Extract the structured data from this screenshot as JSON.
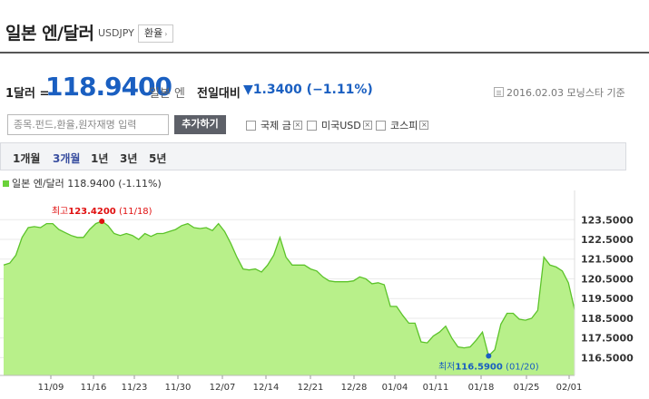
{
  "header": {
    "title": "일본 엔/달러",
    "ticker": "USDJPY",
    "exchange_button": "환율",
    "exchange_arrow": "›"
  },
  "quote": {
    "unit_lead": "1달러 =",
    "price": "118.9400",
    "unit_trail": "일본 엔",
    "change_label": "전일대비",
    "change_value": "▼1.3400 (−1.11%)",
    "date_note": "2016.02.03  모닝스타 기준"
  },
  "compare": {
    "search_placeholder": "종목.펀드,환율,원자재명 입력",
    "add_button": "추가하기",
    "items": [
      {
        "label": "국제 금"
      },
      {
        "label": "미국USD"
      },
      {
        "label": "코스피"
      }
    ]
  },
  "periods": [
    {
      "label": "1개월",
      "active": false
    },
    {
      "label": "3개월",
      "active": true
    },
    {
      "label": "1년",
      "active": false
    },
    {
      "label": "3년",
      "active": false
    },
    {
      "label": "5년",
      "active": false
    }
  ],
  "legend": {
    "label": "일본 엔/달러 118.9400 (-1.11%)",
    "color": "#6ad23a"
  },
  "chart_data": {
    "type": "area",
    "title": "",
    "xlabel": "",
    "ylabel": "",
    "ylim": [
      115.6,
      124.8
    ],
    "y_ticks": [
      "123.5000",
      "122.5000",
      "121.5000",
      "120.5000",
      "119.5000",
      "118.5000",
      "117.5000",
      "116.5000"
    ],
    "x_ticks": [
      "11/09",
      "11/16",
      "11/23",
      "11/30",
      "12/07",
      "12/14",
      "12/21",
      "12/28",
      "01/04",
      "01/11",
      "01/18",
      "01/25",
      "02/01"
    ],
    "fill_color": "#b8f08a",
    "line_color": "#5cc32a",
    "max_label": {
      "prefix": "최고",
      "value": "123.4200",
      "date": "(11/18)",
      "color": "#e01010"
    },
    "min_label": {
      "prefix": "최저",
      "value": "116.5900",
      "date": "(01/20)",
      "color": "#1a5fc1"
    },
    "series": [
      {
        "values": [
          121.2,
          121.3,
          121.7,
          122.6,
          123.1,
          123.15,
          123.1,
          123.3,
          123.3,
          123.0,
          122.85,
          122.7,
          122.6,
          122.6,
          123.0,
          123.3,
          123.42,
          123.2,
          122.8,
          122.7,
          122.8,
          122.7,
          122.5,
          122.8,
          122.65,
          122.8,
          122.8,
          122.9,
          123.0,
          123.2,
          123.3,
          123.1,
          123.05,
          123.1,
          122.95,
          123.3,
          122.9,
          122.3,
          121.6,
          121.0,
          120.95,
          121.0,
          120.85,
          121.2,
          121.7,
          122.6,
          121.6,
          121.2,
          121.2,
          121.2,
          121.0,
          120.9,
          120.6,
          120.4,
          120.35,
          120.35,
          120.35,
          120.4,
          120.6,
          120.5,
          120.25,
          120.3,
          120.2,
          119.1,
          119.1,
          118.65,
          118.25,
          118.25,
          117.3,
          117.25,
          117.6,
          117.8,
          118.1,
          117.5,
          117.05,
          117.0,
          117.05,
          117.4,
          117.8,
          116.59,
          116.9,
          118.2,
          118.75,
          118.75,
          118.45,
          118.4,
          118.5,
          118.9,
          121.6,
          121.2,
          121.1,
          120.9,
          120.3,
          118.94
        ]
      }
    ]
  }
}
